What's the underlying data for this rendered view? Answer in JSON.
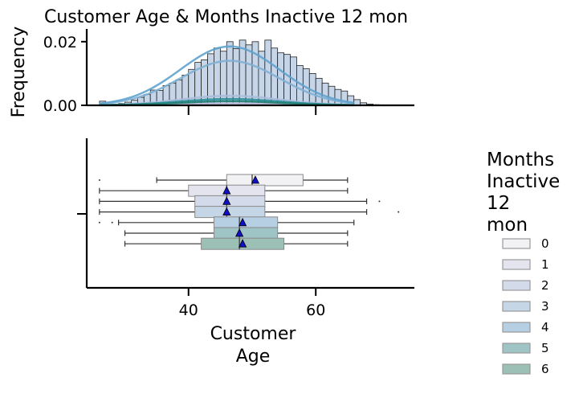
{
  "chart_data": {
    "type": "histogram+boxplot",
    "title": "Customer Age & Months Inactive 12 mon",
    "legend": {
      "title_lines": [
        "Months",
        "Inactive",
        "12",
        "mon"
      ],
      "placement": "right",
      "entries": [
        "0",
        "1",
        "2",
        "3",
        "4",
        "5",
        "6"
      ]
    },
    "colors": [
      "#f2f2f5",
      "#e4e4ef",
      "#d3dae9",
      "#c5d6e6",
      "#b6cfe2",
      "#9fc4c6",
      "#9cbfb6"
    ],
    "kde_colors": [
      "#d8d6ea",
      "#bcbddc",
      "#a9bcdb",
      "#7fb0d4",
      "#5fa3cf",
      "#2a8f9a",
      "#1f7d6e"
    ],
    "hist_panel": {
      "ylabel": "Frequency",
      "ylim": [
        0,
        0.024
      ],
      "yticks": [
        0.0,
        0.02
      ],
      "ytick_labels": [
        "0.00",
        "0.02"
      ],
      "bin_edges_start": 26,
      "bin_width": 1,
      "total_density": [
        0.0013,
        0.0002,
        0.0004,
        0.0006,
        0.001,
        0.0016,
        0.0025,
        0.0034,
        0.0048,
        0.0047,
        0.0062,
        0.007,
        0.008,
        0.0095,
        0.0113,
        0.0135,
        0.0143,
        0.0162,
        0.018,
        0.017,
        0.02,
        0.0178,
        0.0205,
        0.019,
        0.02,
        0.017,
        0.0205,
        0.018,
        0.0165,
        0.016,
        0.0152,
        0.0125,
        0.0115,
        0.01,
        0.0085,
        0.007,
        0.006,
        0.005,
        0.0045,
        0.003,
        0.0018,
        0.0008,
        0.0004,
        0.0002,
        0.0001,
        0.0001,
        0.0001,
        0.0
      ],
      "kde_peaks": [
        0.0001,
        0.0006,
        0.003,
        0.014,
        0.0185,
        0.002,
        0.0013
      ]
    },
    "box_panel": {
      "xlabel": "Customer\nAge",
      "xlim": [
        24,
        75.5
      ],
      "xticks": [
        40,
        60
      ],
      "ytick_count": 1,
      "boxes": [
        {
          "category": "0",
          "whislo": 35,
          "q1": 46,
          "med": 50,
          "q3": 58,
          "whishi": 65,
          "mean": 50.5,
          "fliers": [
            26
          ]
        },
        {
          "category": "1",
          "whislo": 26,
          "q1": 40,
          "med": 46,
          "q3": 52,
          "whishi": 65,
          "mean": 46,
          "fliers": []
        },
        {
          "category": "2",
          "whislo": 26,
          "q1": 41,
          "med": 46,
          "q3": 52,
          "whishi": 68,
          "mean": 46,
          "fliers": [
            70
          ]
        },
        {
          "category": "3",
          "whislo": 26,
          "q1": 41,
          "med": 46,
          "q3": 52,
          "whishi": 68,
          "mean": 46,
          "fliers": [
            73
          ]
        },
        {
          "category": "4",
          "whislo": 29,
          "q1": 44,
          "med": 48,
          "q3": 54,
          "whishi": 66,
          "mean": 48.5,
          "fliers": [
            26,
            28
          ]
        },
        {
          "category": "5",
          "whislo": 30,
          "q1": 44,
          "med": 48,
          "q3": 54,
          "whishi": 65,
          "mean": 48,
          "fliers": []
        },
        {
          "category": "6",
          "whislo": 30,
          "q1": 42,
          "med": 48,
          "q3": 55,
          "whishi": 65,
          "mean": 48.5,
          "fliers": []
        }
      ]
    }
  }
}
